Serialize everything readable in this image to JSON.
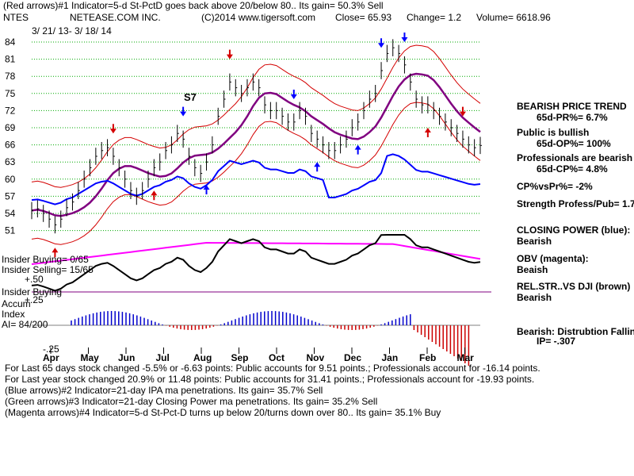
{
  "header": {
    "line1": "(Red arrows)#1 Indicator=5-d St-PctD goes back above 20/below 80.. Its gain= 50.3% Sell",
    "symbol": "NTES",
    "company": "NETEASE.COM INC.",
    "copyright": "(C)2014 www.tigersoft.com",
    "close": "Close=  65.93",
    "change": "Change= 1.2",
    "volume": "Volume= 6618.96",
    "date_range": "3/ 21/ 13-  3/ 18/ 14"
  },
  "annotation": "S7",
  "left_labels": {
    "insider_buying": "Insider Buying= 0/65",
    "insider_selling": "Insider Selling= 15/65",
    "plus50": "+.50",
    "insider_buying_label": "Insider Buying",
    "plus25": "+.25",
    "accum": "Accum",
    "index": "Index",
    "ai": "AI= 84/200",
    "minus25": "-.25"
  },
  "right_panel": {
    "trend_title": "BEARISH PRICE TREND",
    "pr": "65d-PR%= 6.7%",
    "public_bullish": "Public is bullish",
    "op": "65d-OP%= 100%",
    "prof_bearish": "Professionals are bearish",
    "cp": "65d-CP%= 4.8%",
    "cpvspr": "CP%vsPr%= -2%",
    "strength": "Strength Profess/Pub= 1.7",
    "closing_power": "CLOSING POWER (blue):",
    "closing_power_val": "Bearish",
    "obv": "OBV (magenta):",
    "obv_val": "Beaish",
    "relstr": "REL.STR..VS DJI (brown)",
    "relstr_val": "Bearish",
    "distribution": "Bearish: Distrubtion Falling",
    "ip": "IP= -.307"
  },
  "footer": {
    "line1": "For Last 65 days stock changed  -5.5% or -6.63 points:  Public accounts for  9.51 points.;  Professionals account for -16.14 points.",
    "line2": "For Last year stock changed  20.9% or  11.48 points:  Public accounts for  31.41 points.;  Professionals account for -19.93 points.",
    "line3": "(Blue arrows)#2 Indicator=21-day IPA ma penetrations. Its gain= 35.7% Sell",
    "line4": "(Green arrows)#3 Indicator=21-day Closing Power ma penetrations.  Its gain= 35.2% Sell",
    "line5": "(Magenta arrows)#4 Indicator=5-d St-Pct-D turns up below 20/turns down over 80.. Its gain= 35.1% Buy"
  },
  "colors": {
    "price": "#000000",
    "red_band": "#d40000",
    "ma": "#800080",
    "closing_power": "#0000ff",
    "obv": "#ff00ff",
    "relstr": "#000000",
    "accum_pos": "#0000cc",
    "accum_neg": "#cc0000",
    "grid": "#00aa00"
  },
  "chart_data": {
    "type": "line",
    "title": "NETEASE.COM INC.",
    "x_ticks": [
      "Apr",
      "May",
      "Jun",
      "Jul",
      "Aug",
      "Sep",
      "Oct",
      "Nov",
      "Dec",
      "Jan",
      "Feb",
      "Mar"
    ],
    "y_ticks": [
      84,
      81,
      78,
      75,
      72,
      69,
      66,
      63,
      60,
      57,
      54,
      51
    ],
    "ylim": [
      48,
      86
    ],
    "series": [
      {
        "values": [
          54.5,
          54.8,
          54,
          53,
          52,
          53,
          55,
          56,
          58,
          60,
          62,
          64,
          65,
          65.5,
          64,
          62,
          60,
          58,
          57,
          58,
          60,
          62,
          63,
          65,
          66,
          68,
          67,
          64,
          62,
          61,
          63,
          66,
          71,
          74,
          77,
          76,
          75,
          76,
          77,
          76,
          73,
          72,
          72,
          71,
          70,
          70,
          72,
          71,
          68,
          67,
          66,
          65,
          65,
          66,
          67,
          69,
          70,
          72,
          74,
          75,
          79,
          82,
          83,
          82,
          80,
          77,
          74,
          73,
          73,
          72,
          71,
          70,
          69,
          68,
          67,
          66,
          65.5,
          65.9
        ]
      }
    ],
    "grid": true
  }
}
